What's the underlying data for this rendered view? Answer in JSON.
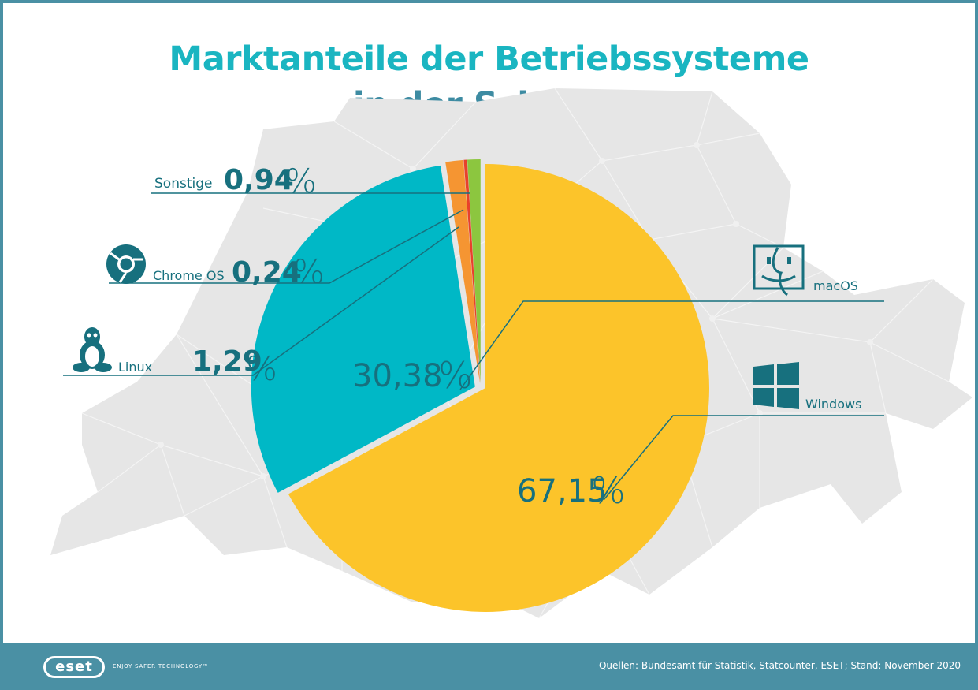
{
  "title": {
    "line1": "Marktanteile der Betriebssysteme",
    "line2": "in der Schweiz"
  },
  "chart_data": {
    "type": "pie",
    "slices": [
      {
        "label": "Windows",
        "value": 67.15,
        "value_text": "67,15",
        "color": "#fcc42a"
      },
      {
        "label": "macOS",
        "value": 30.38,
        "value_text": "30,38",
        "color": "#00b8c6"
      },
      {
        "label": "Linux",
        "value": 1.29,
        "value_text": "1,29",
        "color": "#f59532"
      },
      {
        "label": "Chrome OS",
        "value": 0.24,
        "value_text": "0,24",
        "color": "#e8412b"
      },
      {
        "label": "Sonstige",
        "value": 0.94,
        "value_text": "0,94",
        "color": "#8cc63f"
      }
    ],
    "percent_sign": "%"
  },
  "icons": {
    "chrome": "chrome-icon",
    "linux": "tux-icon",
    "macos": "finder-icon",
    "windows": "windows-icon"
  },
  "colors": {
    "teal": "#1ab5c1",
    "dark_teal": "#17707e",
    "footer": "#4a90a4",
    "map": "#e6e6e6"
  },
  "footer": {
    "logo": "eset",
    "tagline": "ENJOY SAFER TECHNOLOGY™",
    "sources": "Quellen: Bundesamt für Statistik, Statcounter, ESET; Stand: November 2020"
  }
}
